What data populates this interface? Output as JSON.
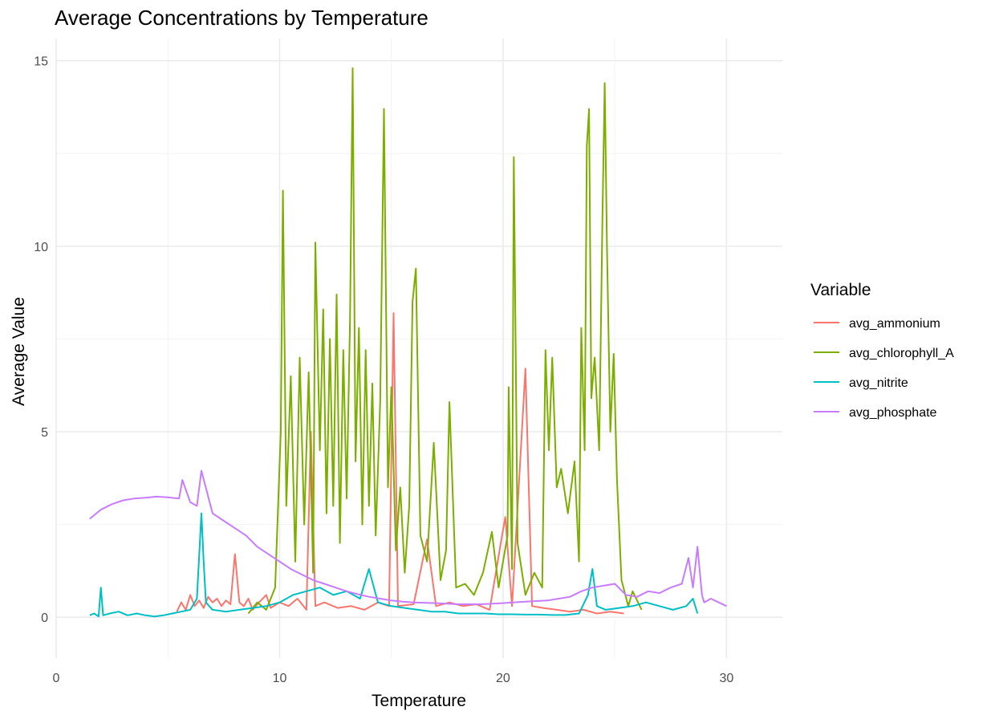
{
  "chart_data": {
    "type": "line",
    "title": "Average Concentrations by Temperature",
    "xlabel": "Temperature",
    "ylabel": "Average Value",
    "xlim": [
      0,
      32.5
    ],
    "ylim": [
      -1.1,
      15.6
    ],
    "xticks": [
      0,
      10,
      20,
      30
    ],
    "yticks": [
      0,
      5,
      10,
      15
    ],
    "grid": true,
    "legend": {
      "title": "Variable",
      "position": "right"
    },
    "series": [
      {
        "name": "avg_ammonium",
        "color": "#F8766D",
        "points": [
          [
            5.4,
            0.15
          ],
          [
            5.6,
            0.4
          ],
          [
            5.8,
            0.2
          ],
          [
            6.0,
            0.6
          ],
          [
            6.2,
            0.3
          ],
          [
            6.4,
            0.45
          ],
          [
            6.6,
            0.25
          ],
          [
            6.8,
            0.55
          ],
          [
            7.0,
            0.4
          ],
          [
            7.2,
            0.5
          ],
          [
            7.4,
            0.3
          ],
          [
            7.6,
            0.45
          ],
          [
            7.8,
            0.35
          ],
          [
            8.0,
            1.7
          ],
          [
            8.2,
            0.4
          ],
          [
            8.4,
            0.3
          ],
          [
            8.6,
            0.5
          ],
          [
            8.8,
            0.2
          ],
          [
            9.0,
            0.35
          ],
          [
            9.4,
            0.6
          ],
          [
            9.6,
            0.25
          ],
          [
            10.0,
            0.4
          ],
          [
            10.4,
            0.3
          ],
          [
            10.8,
            0.5
          ],
          [
            11.2,
            0.2
          ],
          [
            11.4,
            5.0
          ],
          [
            11.6,
            0.3
          ],
          [
            12.0,
            0.4
          ],
          [
            12.6,
            0.25
          ],
          [
            13.2,
            0.3
          ],
          [
            13.8,
            0.2
          ],
          [
            14.4,
            0.4
          ],
          [
            14.9,
            0.3
          ],
          [
            15.1,
            8.2
          ],
          [
            15.3,
            0.3
          ],
          [
            16.0,
            0.35
          ],
          [
            16.6,
            2.1
          ],
          [
            17.0,
            0.3
          ],
          [
            17.6,
            0.4
          ],
          [
            18.2,
            0.3
          ],
          [
            18.8,
            0.35
          ],
          [
            19.4,
            0.2
          ],
          [
            19.9,
            2.0
          ],
          [
            20.1,
            2.7
          ],
          [
            20.4,
            0.3
          ],
          [
            21.0,
            6.7
          ],
          [
            21.3,
            0.3
          ],
          [
            21.8,
            0.25
          ],
          [
            22.4,
            0.2
          ],
          [
            23.0,
            0.15
          ],
          [
            23.6,
            0.2
          ],
          [
            24.2,
            0.1
          ],
          [
            24.8,
            0.15
          ],
          [
            25.4,
            0.1
          ]
        ]
      },
      {
        "name": "avg_chlorophyll_A",
        "color": "#7CAE00",
        "points": [
          [
            8.6,
            0.1
          ],
          [
            9.0,
            0.4
          ],
          [
            9.4,
            0.2
          ],
          [
            9.8,
            0.8
          ],
          [
            10.05,
            5.0
          ],
          [
            10.15,
            11.5
          ],
          [
            10.3,
            3.0
          ],
          [
            10.5,
            6.5
          ],
          [
            10.7,
            1.5
          ],
          [
            10.9,
            7.0
          ],
          [
            11.1,
            2.5
          ],
          [
            11.3,
            6.6
          ],
          [
            11.5,
            1.2
          ],
          [
            11.6,
            10.1
          ],
          [
            11.8,
            4.5
          ],
          [
            11.95,
            8.3
          ],
          [
            12.1,
            2.8
          ],
          [
            12.25,
            7.5
          ],
          [
            12.4,
            3.0
          ],
          [
            12.55,
            8.7
          ],
          [
            12.7,
            2.0
          ],
          [
            12.85,
            7.2
          ],
          [
            13.0,
            3.2
          ],
          [
            13.15,
            8.0
          ],
          [
            13.27,
            14.8
          ],
          [
            13.4,
            4.2
          ],
          [
            13.55,
            7.8
          ],
          [
            13.7,
            2.5
          ],
          [
            13.85,
            7.2
          ],
          [
            14.0,
            3.0
          ],
          [
            14.15,
            6.3
          ],
          [
            14.3,
            2.2
          ],
          [
            14.5,
            5.8
          ],
          [
            14.67,
            13.7
          ],
          [
            14.85,
            3.5
          ],
          [
            15.0,
            6.2
          ],
          [
            15.2,
            1.8
          ],
          [
            15.4,
            3.5
          ],
          [
            15.6,
            1.2
          ],
          [
            15.8,
            3.0
          ],
          [
            15.95,
            8.5
          ],
          [
            16.1,
            9.4
          ],
          [
            16.3,
            2.2
          ],
          [
            16.6,
            1.5
          ],
          [
            16.9,
            4.7
          ],
          [
            17.2,
            1.0
          ],
          [
            17.45,
            1.8
          ],
          [
            17.6,
            5.8
          ],
          [
            17.9,
            0.8
          ],
          [
            18.3,
            0.9
          ],
          [
            18.7,
            0.6
          ],
          [
            19.1,
            1.2
          ],
          [
            19.5,
            2.3
          ],
          [
            19.8,
            0.8
          ],
          [
            20.0,
            1.5
          ],
          [
            20.2,
            2.2
          ],
          [
            20.25,
            6.2
          ],
          [
            20.4,
            1.3
          ],
          [
            20.48,
            12.4
          ],
          [
            20.65,
            2.0
          ],
          [
            21.0,
            0.6
          ],
          [
            21.4,
            1.2
          ],
          [
            21.75,
            0.8
          ],
          [
            21.9,
            7.2
          ],
          [
            22.05,
            4.5
          ],
          [
            22.2,
            7.0
          ],
          [
            22.4,
            3.5
          ],
          [
            22.6,
            4.0
          ],
          [
            22.9,
            2.8
          ],
          [
            23.2,
            4.2
          ],
          [
            23.4,
            1.5
          ],
          [
            23.5,
            7.8
          ],
          [
            23.65,
            4.5
          ],
          [
            23.75,
            12.7
          ],
          [
            23.85,
            13.7
          ],
          [
            23.95,
            5.9
          ],
          [
            24.1,
            7.0
          ],
          [
            24.3,
            4.5
          ],
          [
            24.45,
            10.8
          ],
          [
            24.55,
            14.4
          ],
          [
            24.65,
            10.0
          ],
          [
            24.8,
            5.0
          ],
          [
            24.95,
            7.1
          ],
          [
            25.1,
            3.7
          ],
          [
            25.3,
            1.0
          ],
          [
            25.6,
            0.3
          ],
          [
            25.8,
            0.7
          ],
          [
            26.2,
            0.2
          ]
        ]
      },
      {
        "name": "avg_nitrite",
        "color": "#00BFC4",
        "points": [
          [
            1.5,
            0.05
          ],
          [
            1.7,
            0.1
          ],
          [
            1.9,
            0.02
          ],
          [
            2.0,
            0.8
          ],
          [
            2.1,
            0.05
          ],
          [
            2.4,
            0.1
          ],
          [
            2.8,
            0.15
          ],
          [
            3.2,
            0.05
          ],
          [
            3.6,
            0.1
          ],
          [
            4.0,
            0.05
          ],
          [
            4.4,
            0.02
          ],
          [
            4.8,
            0.05
          ],
          [
            5.2,
            0.1
          ],
          [
            5.6,
            0.15
          ],
          [
            6.0,
            0.2
          ],
          [
            6.3,
            0.5
          ],
          [
            6.5,
            2.8
          ],
          [
            6.6,
            1.5
          ],
          [
            6.7,
            0.4
          ],
          [
            7.0,
            0.2
          ],
          [
            7.6,
            0.15
          ],
          [
            8.2,
            0.2
          ],
          [
            8.8,
            0.25
          ],
          [
            9.4,
            0.3
          ],
          [
            10.0,
            0.4
          ],
          [
            10.6,
            0.6
          ],
          [
            11.2,
            0.7
          ],
          [
            11.8,
            0.8
          ],
          [
            12.4,
            0.6
          ],
          [
            13.0,
            0.7
          ],
          [
            13.6,
            0.5
          ],
          [
            14.0,
            1.3
          ],
          [
            14.4,
            0.4
          ],
          [
            15.0,
            0.3
          ],
          [
            15.6,
            0.25
          ],
          [
            16.2,
            0.2
          ],
          [
            16.8,
            0.15
          ],
          [
            17.4,
            0.15
          ],
          [
            18.0,
            0.1
          ],
          [
            18.6,
            0.1
          ],
          [
            19.2,
            0.1
          ],
          [
            19.8,
            0.08
          ],
          [
            20.4,
            0.08
          ],
          [
            21.0,
            0.07
          ],
          [
            21.6,
            0.07
          ],
          [
            22.2,
            0.06
          ],
          [
            22.8,
            0.06
          ],
          [
            23.4,
            0.1
          ],
          [
            23.8,
            0.6
          ],
          [
            24.0,
            1.3
          ],
          [
            24.2,
            0.3
          ],
          [
            24.6,
            0.2
          ],
          [
            25.2,
            0.25
          ],
          [
            25.8,
            0.3
          ],
          [
            26.4,
            0.4
          ],
          [
            27.0,
            0.3
          ],
          [
            27.6,
            0.2
          ],
          [
            28.2,
            0.3
          ],
          [
            28.5,
            0.5
          ],
          [
            28.7,
            0.1
          ]
        ]
      },
      {
        "name": "avg_phosphate",
        "color": "#C77CFF",
        "points": [
          [
            1.5,
            2.65
          ],
          [
            2.0,
            2.9
          ],
          [
            2.5,
            3.05
          ],
          [
            3.0,
            3.15
          ],
          [
            3.5,
            3.2
          ],
          [
            4.0,
            3.22
          ],
          [
            4.5,
            3.25
          ],
          [
            5.0,
            3.23
          ],
          [
            5.5,
            3.2
          ],
          [
            5.65,
            3.7
          ],
          [
            6.0,
            3.1
          ],
          [
            6.3,
            3.0
          ],
          [
            6.5,
            3.95
          ],
          [
            7.0,
            2.8
          ],
          [
            7.5,
            2.6
          ],
          [
            8.0,
            2.4
          ],
          [
            8.5,
            2.2
          ],
          [
            9.0,
            1.9
          ],
          [
            9.5,
            1.7
          ],
          [
            10.0,
            1.5
          ],
          [
            10.5,
            1.3
          ],
          [
            11.0,
            1.15
          ],
          [
            11.5,
            1.0
          ],
          [
            12.0,
            0.9
          ],
          [
            12.5,
            0.8
          ],
          [
            13.0,
            0.7
          ],
          [
            13.5,
            0.62
          ],
          [
            14.0,
            0.55
          ],
          [
            14.5,
            0.5
          ],
          [
            15.0,
            0.45
          ],
          [
            15.5,
            0.42
          ],
          [
            16.0,
            0.4
          ],
          [
            17.0,
            0.38
          ],
          [
            18.0,
            0.35
          ],
          [
            19.0,
            0.35
          ],
          [
            20.0,
            0.38
          ],
          [
            21.0,
            0.42
          ],
          [
            22.0,
            0.45
          ],
          [
            22.5,
            0.5
          ],
          [
            23.0,
            0.55
          ],
          [
            23.5,
            0.7
          ],
          [
            24.0,
            0.8
          ],
          [
            24.5,
            0.85
          ],
          [
            25.0,
            0.9
          ],
          [
            25.5,
            0.6
          ],
          [
            26.0,
            0.55
          ],
          [
            26.5,
            0.7
          ],
          [
            27.0,
            0.65
          ],
          [
            27.5,
            0.8
          ],
          [
            28.0,
            0.9
          ],
          [
            28.3,
            1.6
          ],
          [
            28.5,
            0.8
          ],
          [
            28.7,
            1.9
          ],
          [
            28.9,
            0.6
          ],
          [
            29.0,
            0.4
          ],
          [
            29.3,
            0.5
          ],
          [
            30.0,
            0.3
          ]
        ]
      }
    ]
  }
}
